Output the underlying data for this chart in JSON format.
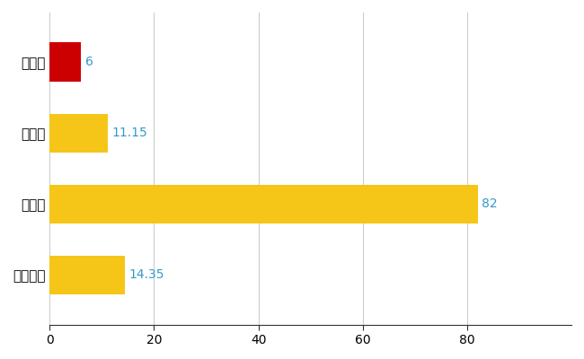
{
  "categories": [
    "板柳町",
    "県平均",
    "県最大",
    "全国平均"
  ],
  "values": [
    6,
    11.15,
    82,
    14.35
  ],
  "bar_colors": [
    "#cc0000",
    "#f5c518",
    "#f5c518",
    "#f5c518"
  ],
  "value_labels": [
    "6",
    "11.15",
    "82",
    "14.35"
  ],
  "label_color": "#3399cc",
  "xlim": [
    0,
    100
  ],
  "xticks": [
    0,
    20,
    40,
    60,
    80
  ],
  "grid_color": "#cccccc",
  "background_color": "#ffffff",
  "bar_height": 0.55,
  "label_fontsize": 10,
  "tick_fontsize": 10,
  "ytick_fontsize": 11
}
